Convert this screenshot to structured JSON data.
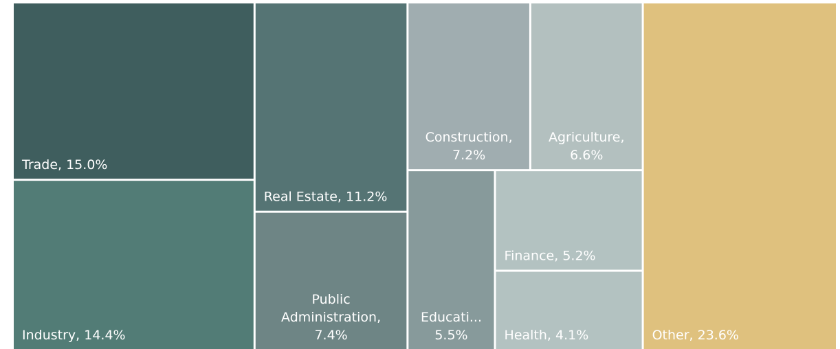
{
  "chart_data": {
    "type": "treemap",
    "values": [
      15.0,
      14.4,
      11.2,
      7.4,
      7.2,
      6.6,
      5.5,
      5.2,
      4.1,
      23.6
    ],
    "value_labels": [
      "Trade, 15.0%",
      "Industry, 14.4%",
      "Real Estate, 11.2%",
      "Public\nAdministration,\n7.4%",
      "Construction,\n7.2%",
      "Agriculture,\n6.6%",
      "Educati...\n5.5%",
      "Finance, 5.2%",
      "Health, 4.1%",
      "Other, 23.6%"
    ],
    "colors": [
      "#3f5e5e",
      "#527c76",
      "#557474",
      "#6e8585",
      "#a0adb0",
      "#b3c0bf",
      "#879a9b",
      "#b3c2c1",
      "#b3c2c1",
      "#dfc17e"
    ]
  }
}
